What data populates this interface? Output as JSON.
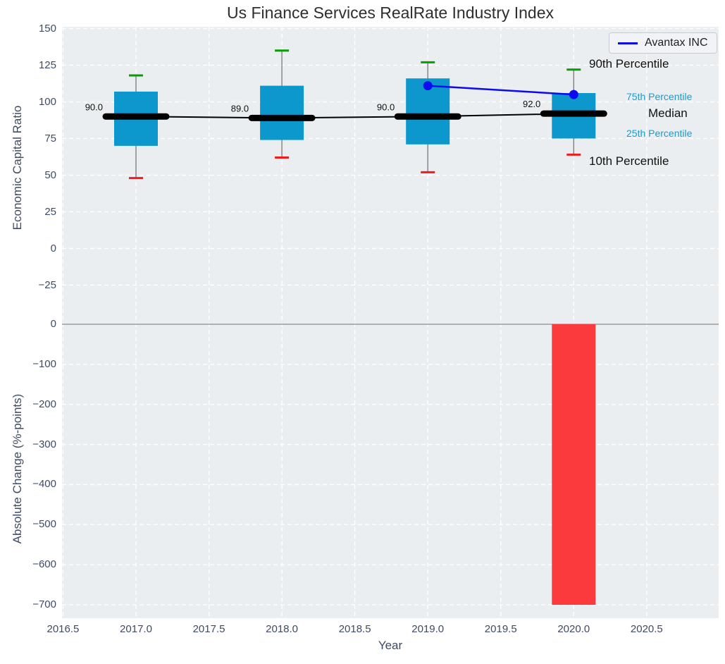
{
  "title": "Us Finance Services RealRate Industry Index",
  "legend": {
    "label": "Avantax INC"
  },
  "annotations": {
    "p90": "90th Percentile",
    "p75": "75th Percentile",
    "median": "Median",
    "p25": "25th Percentile",
    "p10": "10th Percentile"
  },
  "x_axis": {
    "label": "Year",
    "ticks": [
      2016.5,
      2017.0,
      2017.5,
      2018.0,
      2018.5,
      2019.0,
      2019.5,
      2020.0,
      2020.5
    ],
    "range": [
      2016.49,
      2021.0
    ]
  },
  "colors": {
    "plot_bg": "#ebeef0",
    "grid": "#ffffff",
    "box_fill": "#0d98cd",
    "whisker": "#808080",
    "cap_high": "#0a9a0a",
    "cap_low": "#ee1c1c",
    "median_line": "#000000",
    "avantax": "#0b0bee",
    "bar_fill": "#fa3a3c",
    "zero_line": "#b0b0b0",
    "tick_text": "#3f4b63",
    "annotation_cyan": "#1b9bce",
    "annotation_black": "#111111"
  },
  "chart_data": [
    {
      "type": "boxplot",
      "panel": "top",
      "ylabel": "Economic Capital Ratio",
      "yticks": [
        150,
        125,
        100,
        75,
        50,
        25,
        0,
        -25
      ],
      "ylim": [
        -49,
        152
      ],
      "grid": true,
      "boxes": [
        {
          "year": 2017,
          "median": 90.0,
          "q1": 70,
          "q3": 107,
          "p10": 48,
          "p90": 118
        },
        {
          "year": 2018,
          "median": 89.0,
          "q1": 74,
          "q3": 111,
          "p10": 62,
          "p90": 135
        },
        {
          "year": 2019,
          "median": 90.0,
          "q1": 71,
          "q3": 116,
          "p10": 52,
          "p90": 127
        },
        {
          "year": 2020,
          "median": 92.0,
          "q1": 75,
          "q3": 106,
          "p10": 64,
          "p90": 122
        }
      ],
      "median_labels": [
        "90.0",
        "89.0",
        "90.0",
        "92.0"
      ],
      "series": [
        {
          "name": "Avantax INC",
          "x": [
            2019,
            2020
          ],
          "y": [
            111,
            105
          ]
        }
      ]
    },
    {
      "type": "bar",
      "panel": "bottom",
      "ylabel": "Absolute Change (%-points)",
      "xlabel": "Year",
      "yticks": [
        0,
        -100,
        -200,
        -300,
        -400,
        -500,
        -600,
        -700
      ],
      "ylim": [
        -733,
        9
      ],
      "grid": true,
      "bars": [
        {
          "year": 2020,
          "value": -700
        }
      ]
    }
  ]
}
